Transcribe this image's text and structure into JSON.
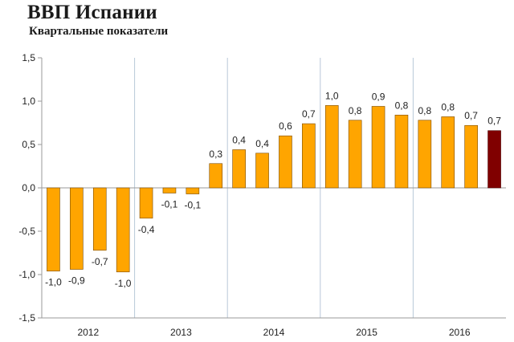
{
  "title": "ВВП Испании",
  "subtitle": "Квартальные показатели",
  "colors": {
    "bar": "#FFA500",
    "bar_last": "#800000",
    "bar_stroke": "#7a4a00",
    "axis": "#9a9a9a",
    "separator": "#b8c8d8"
  },
  "chart_data": {
    "type": "bar",
    "title": "ВВП Испании",
    "subtitle": "Квартальные показатели",
    "xlabel": "",
    "ylabel": "",
    "ylim": [
      -1.5,
      1.5
    ],
    "yticks": [
      "1,5",
      "1,0",
      "0,5",
      "0,0",
      "-0,5",
      "-1,0",
      "-1,5"
    ],
    "ytick_values": [
      1.5,
      1.0,
      0.5,
      0.0,
      -0.5,
      -1.0,
      -1.5
    ],
    "groups": [
      "2012",
      "2013",
      "2014",
      "2015",
      "2016"
    ],
    "quarters_per_group": 4,
    "values": [
      -0.96,
      -0.94,
      -0.72,
      -0.97,
      -0.35,
      -0.06,
      -0.07,
      0.28,
      0.44,
      0.4,
      0.6,
      0.74,
      0.95,
      0.78,
      0.94,
      0.84,
      0.78,
      0.82,
      0.72,
      0.66
    ],
    "labels": [
      "-1,0",
      "-0,9",
      "-0,7",
      "-1,0",
      "-0,4",
      "-0,1",
      "-0,1",
      "0,3",
      "0,4",
      "0,4",
      "0,6",
      "0,7",
      "1,0",
      "0,8",
      "0,9",
      "0,8",
      "0,8",
      "0,8",
      "0,7",
      "0,7"
    ],
    "grid": false,
    "legend": "none",
    "highlight_last": true
  }
}
